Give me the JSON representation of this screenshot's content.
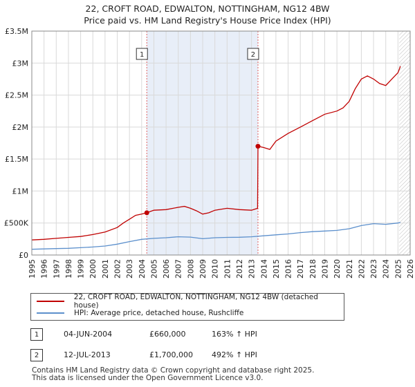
{
  "title_line1": "22, CROFT ROAD, EDWALTON, NOTTINGHAM, NG12 4BW",
  "title_line2": "Price paid vs. HM Land Registry's House Price Index (HPI)",
  "colors": {
    "property": "#c00000",
    "hpi": "#5b8fcc",
    "shade": "#e8eef8",
    "grid": "#d9d9d9"
  },
  "chart_data": {
    "type": "line",
    "xlim": [
      1995,
      2026
    ],
    "ylim": [
      0,
      3500000
    ],
    "x_ticks": [
      1995,
      1996,
      1997,
      1998,
      1999,
      2000,
      2001,
      2002,
      2003,
      2004,
      2005,
      2006,
      2007,
      2008,
      2009,
      2010,
      2011,
      2012,
      2013,
      2014,
      2015,
      2016,
      2017,
      2018,
      2019,
      2020,
      2021,
      2022,
      2023,
      2024,
      2025,
      2026
    ],
    "y_ticks": [
      {
        "value": 0,
        "label": "£0"
      },
      {
        "value": 500000,
        "label": "£500K"
      },
      {
        "value": 1000000,
        "label": "£1M"
      },
      {
        "value": 1500000,
        "label": "£1.5M"
      },
      {
        "value": 2000000,
        "label": "£2M"
      },
      {
        "value": 2500000,
        "label": "£2.5M"
      },
      {
        "value": 3000000,
        "label": "£3M"
      },
      {
        "value": 3500000,
        "label": "£3.5M"
      }
    ],
    "shaded_range": [
      2004.42,
      2013.53
    ],
    "hatched_from": 2025.1,
    "series": [
      {
        "name": "22, CROFT ROAD, EDWALTON, NOTTINGHAM, NG12 4BW (detached house)",
        "color": "#c00000",
        "x": [
          1995,
          1996,
          1997,
          1998,
          1999,
          2000,
          2001,
          2002,
          2002.5,
          2003,
          2003.5,
          2004,
          2004.42,
          2005,
          2006,
          2007,
          2007.5,
          2008,
          2008.5,
          2009,
          2009.5,
          2010,
          2011,
          2012,
          2013,
          2013.5,
          2013.53,
          2014,
          2014.5,
          2015,
          2016,
          2017,
          2018,
          2019,
          2020,
          2020.5,
          2021,
          2021.5,
          2022,
          2022.5,
          2023,
          2023.5,
          2024,
          2024.5,
          2025,
          2025.2
        ],
        "values": [
          235000,
          245000,
          260000,
          275000,
          290000,
          320000,
          360000,
          430000,
          500000,
          560000,
          620000,
          640000,
          660000,
          700000,
          710000,
          745000,
          760000,
          730000,
          690000,
          640000,
          660000,
          700000,
          730000,
          710000,
          700000,
          730000,
          1700000,
          1680000,
          1650000,
          1780000,
          1900000,
          2000000,
          2100000,
          2200000,
          2250000,
          2300000,
          2400000,
          2600000,
          2750000,
          2800000,
          2750000,
          2680000,
          2650000,
          2750000,
          2850000,
          2950000
        ]
      },
      {
        "name": "HPI: Average price, detached house, Rushcliffe",
        "color": "#5b8fcc",
        "x": [
          1995,
          1996,
          1997,
          1998,
          1999,
          2000,
          2001,
          2002,
          2003,
          2004,
          2005,
          2006,
          2007,
          2008,
          2009,
          2010,
          2011,
          2012,
          2013,
          2014,
          2015,
          2016,
          2017,
          2018,
          2019,
          2020,
          2021,
          2022,
          2023,
          2024,
          2025,
          2025.2
        ],
        "values": [
          90000,
          95000,
          100000,
          105000,
          115000,
          125000,
          140000,
          170000,
          210000,
          245000,
          260000,
          270000,
          285000,
          280000,
          255000,
          270000,
          275000,
          278000,
          285000,
          300000,
          315000,
          330000,
          350000,
          365000,
          375000,
          385000,
          410000,
          460000,
          490000,
          480000,
          500000,
          510000
        ]
      }
    ],
    "sales": [
      {
        "label": "1",
        "x": 2004.42,
        "value": 660000
      },
      {
        "label": "2",
        "x": 2013.53,
        "value": 1700000
      }
    ]
  },
  "legend": {
    "property": "22, CROFT ROAD, EDWALTON, NOTTINGHAM, NG12 4BW (detached house)",
    "hpi": "HPI: Average price, detached house, Rushcliffe"
  },
  "transactions": [
    {
      "marker": "1",
      "date": "04-JUN-2004",
      "price": "£660,000",
      "hpi": "163% ↑ HPI"
    },
    {
      "marker": "2",
      "date": "12-JUL-2013",
      "price": "£1,700,000",
      "hpi": "492% ↑ HPI"
    }
  ],
  "footer": {
    "line1": "Contains HM Land Registry data © Crown copyright and database right 2025.",
    "line2": "This data is licensed under the Open Government Licence v3.0."
  }
}
